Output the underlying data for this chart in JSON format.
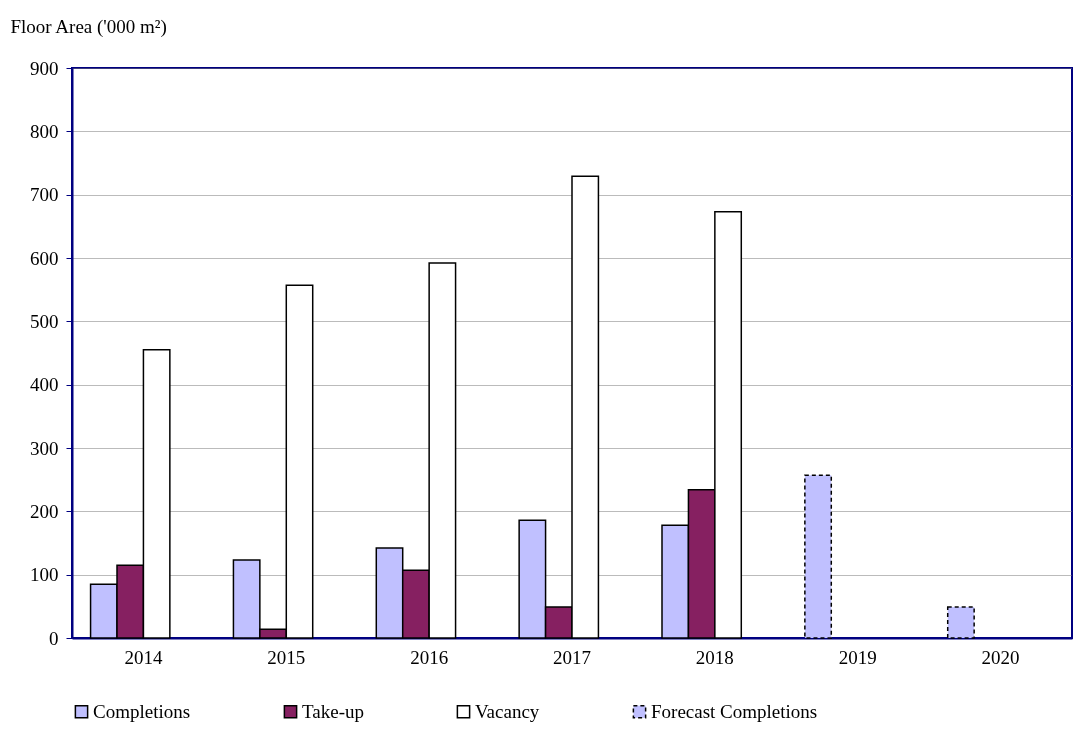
{
  "chart_data": {
    "type": "bar",
    "ylabel": "Floor Area ('000 m²)",
    "categories": [
      "2014",
      "2015",
      "2016",
      "2017",
      "2018",
      "2019",
      "2020"
    ],
    "series": [
      {
        "name": "Completions",
        "color": "#c0c0ff",
        "values": [
          85,
          123,
          142,
          186,
          178,
          null,
          null
        ]
      },
      {
        "name": "Take-up",
        "color": "#862061",
        "values": [
          115,
          14,
          107,
          49,
          234,
          null,
          null
        ]
      },
      {
        "name": "Vacancy",
        "color": "#ffffff",
        "values": [
          455,
          557,
          592,
          729,
          673,
          null,
          null
        ]
      },
      {
        "name": "Forecast Completions",
        "color": "#c0c0ff",
        "line_style": "dashed",
        "values": [
          null,
          null,
          null,
          null,
          null,
          257,
          49
        ]
      }
    ],
    "ylim": [
      0,
      900
    ],
    "yticks": [
      0,
      100,
      200,
      300,
      400,
      500,
      600,
      700,
      800,
      900
    ],
    "grid": "y",
    "legend": "bottom"
  }
}
